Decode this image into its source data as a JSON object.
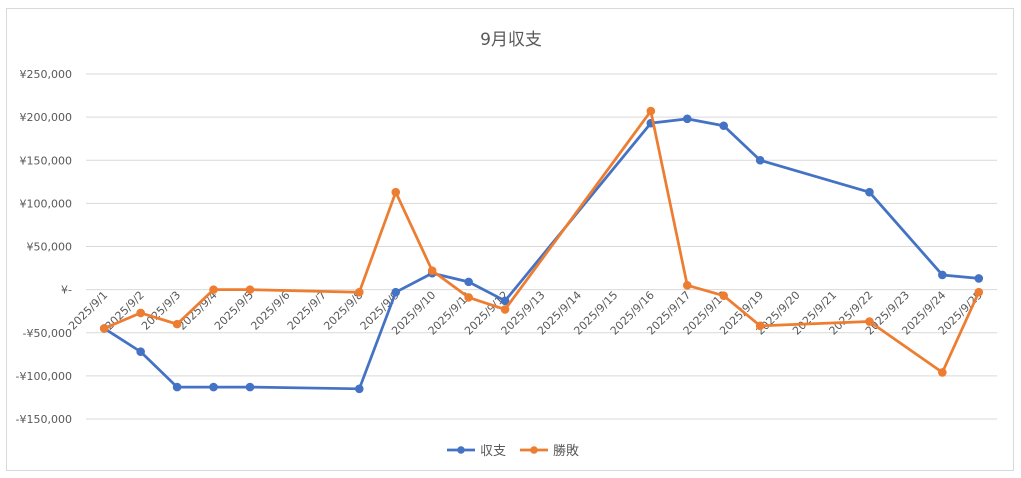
{
  "chart_data": {
    "type": "line",
    "title": "9月収支",
    "xlabel": "",
    "ylabel": "",
    "ylim": [
      -150000,
      250000
    ],
    "y_ticks": [
      250000,
      200000,
      150000,
      100000,
      50000,
      0,
      -50000,
      -100000,
      -150000
    ],
    "y_tick_labels": [
      "¥250,000",
      "¥200,000",
      "¥150,000",
      "¥100,000",
      "¥50,000",
      "¥-",
      "-¥50,000",
      "-¥100,000",
      "-¥150,000"
    ],
    "categories": [
      "2025/9/1",
      "2025/9/2",
      "2025/9/3",
      "2025/9/4",
      "2025/9/5",
      "2025/9/6",
      "2025/9/7",
      "2025/9/8",
      "2025/9/9",
      "2025/9/10",
      "2025/9/11",
      "2025/9/12",
      "2025/9/13",
      "2025/9/14",
      "2025/9/15",
      "2025/9/16",
      "2025/9/17",
      "2025/9/18",
      "2025/9/19",
      "2025/9/20",
      "2025/9/21",
      "2025/9/22",
      "2025/9/23",
      "2025/9/24",
      "2025/9/25"
    ],
    "grid": true,
    "legend_position": "bottom",
    "series": [
      {
        "name": "収支",
        "color": "#4472c4",
        "values": [
          -45000,
          -72000,
          -113000,
          -113000,
          -113000,
          null,
          null,
          -115000,
          -3000,
          19000,
          9000,
          -13000,
          null,
          null,
          null,
          193000,
          198000,
          190000,
          150000,
          null,
          null,
          113000,
          null,
          17000,
          13000
        ]
      },
      {
        "name": "勝敗",
        "color": "#ed7d31",
        "values": [
          -45000,
          -27000,
          -40000,
          0,
          0,
          null,
          null,
          -3000,
          113000,
          22000,
          -9000,
          -23000,
          null,
          null,
          null,
          207000,
          5000,
          -7000,
          -42000,
          null,
          null,
          -37000,
          null,
          -96000,
          -3000
        ]
      }
    ]
  }
}
